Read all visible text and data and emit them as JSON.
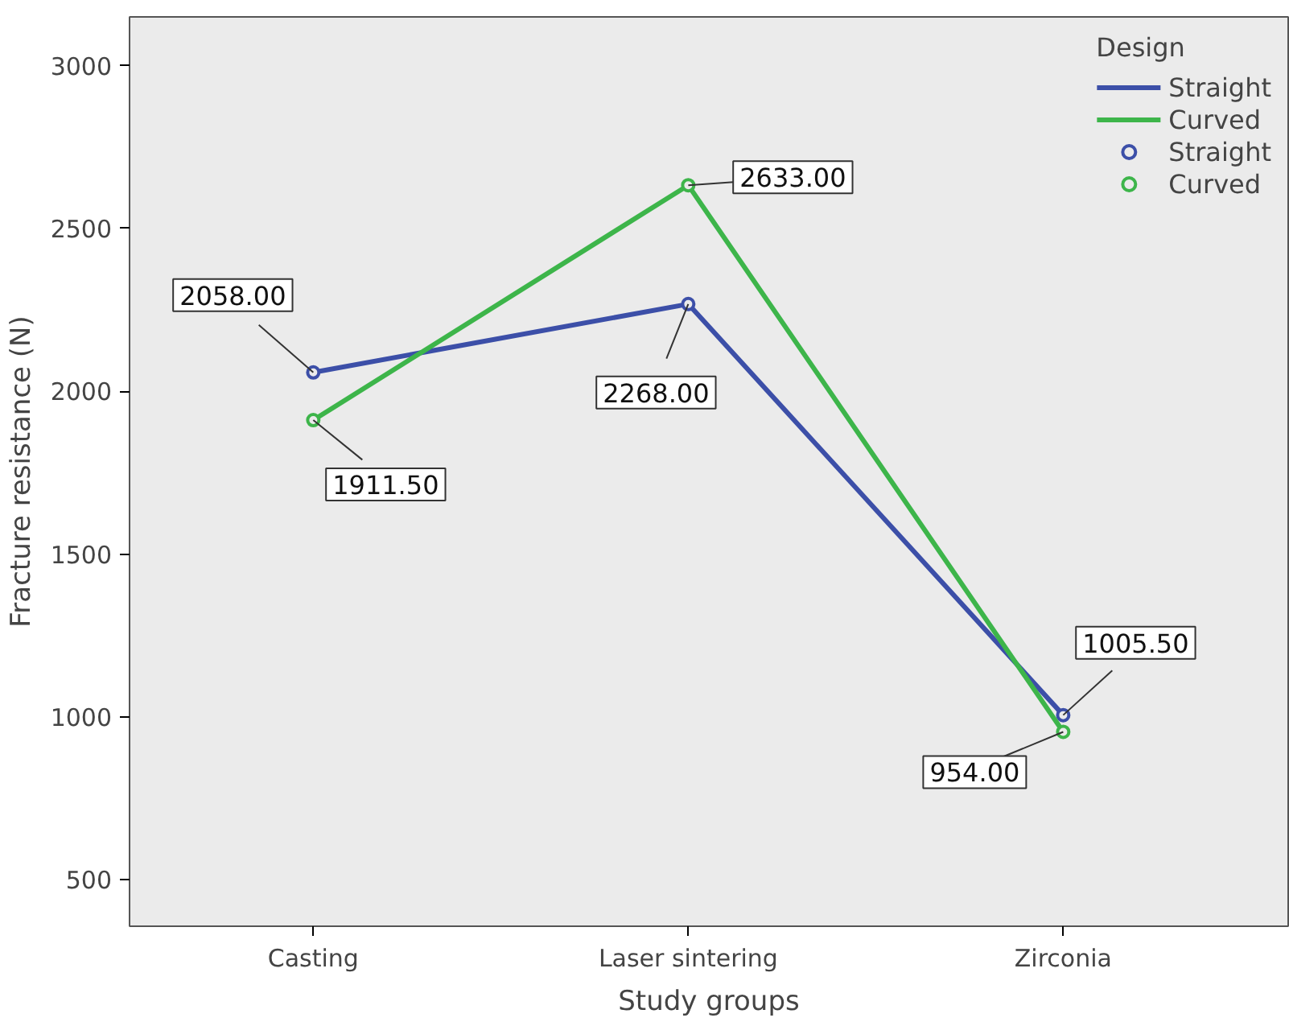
{
  "chart_data": {
    "type": "line",
    "xlabel": "Study groups",
    "ylabel": "Fracture resistance (N)",
    "legend_title": "Design",
    "categories": [
      "Casting",
      "Laser sintering",
      "Zirconia"
    ],
    "ylim": [
      357,
      3150
    ],
    "yticks": [
      500,
      1000,
      1500,
      2000,
      2500,
      3000
    ],
    "grid": false,
    "legend": "top right",
    "marker": "circle",
    "line_style": "solid",
    "series": [
      {
        "name": "Straight",
        "color": "#3c4fa8",
        "values": [
          2058.0,
          2268.0,
          1005.5
        ],
        "value_labels": [
          "2058.00",
          "2268.00",
          "1005.50"
        ]
      },
      {
        "name": "Curved",
        "color": "#3db54a",
        "values": [
          1911.5,
          2633.0,
          954.0
        ],
        "value_labels": [
          "1911.50",
          "2633.00",
          "954.00"
        ]
      }
    ]
  }
}
